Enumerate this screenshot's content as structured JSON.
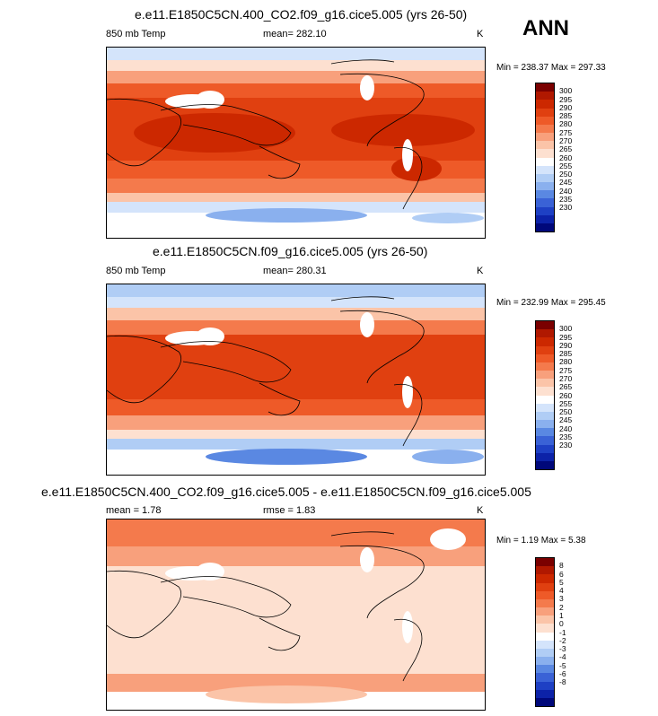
{
  "season": "ANN",
  "colors": {
    "temp": [
      "#7a0000",
      "#b01800",
      "#cc2800",
      "#e04010",
      "#ee5a28",
      "#f47a4c",
      "#f8a07c",
      "#fbc4a8",
      "#fde0d0",
      "#ffffff",
      "#d4e4fb",
      "#b0cdf5",
      "#8ab0ee",
      "#5a88e2",
      "#3a62d6",
      "#1e40c4",
      "#0c22a8",
      "#00087a"
    ],
    "diff": [
      "#7a0000",
      "#b01800",
      "#cc2800",
      "#e04010",
      "#ee5a28",
      "#f47a4c",
      "#f8a07c",
      "#fbc4a8",
      "#fde0d0",
      "#ffffff",
      "#d4e4fb",
      "#b0cdf5",
      "#8ab0ee",
      "#5a88e2",
      "#3a62d6",
      "#1e40c4",
      "#0c22a8",
      "#00087a"
    ]
  },
  "panels": [
    {
      "title": "e.e11.E1850C5CN.400_CO2.f09_g16.cice5.005 (yrs 26-50)",
      "variable": "850 mb Temp",
      "mean_label": "mean= 282.10",
      "units": "K",
      "range_label": "Min = 238.37 Max = 297.33",
      "scale": "temp",
      "levels": [
        "300",
        "295",
        "290",
        "285",
        "280",
        "275",
        "270",
        "265",
        "260",
        "255",
        "250",
        "245",
        "240",
        "235",
        "230"
      ],
      "mean_value": 282.1
    },
    {
      "title": "e.e11.E1850C5CN.f09_g16.cice5.005 (yrs 26-50)",
      "variable": "850 mb Temp",
      "mean_label": "mean= 280.31",
      "units": "K",
      "range_label": "Min = 232.99 Max = 295.45",
      "scale": "temp",
      "levels": [
        "300",
        "295",
        "290",
        "285",
        "280",
        "275",
        "270",
        "265",
        "260",
        "255",
        "250",
        "245",
        "240",
        "235",
        "230"
      ],
      "mean_value": 280.31
    },
    {
      "title": "e.e11.E1850C5CN.400_CO2.f09_g16.cice5.005 - e.e11.E1850C5CN.f09_g16.cice5.005",
      "variable": "mean =   1.78",
      "mean_label": "rmse =   1.83",
      "units": "K",
      "range_label": "Min =  1.19 Max =  5.38",
      "scale": "diff",
      "levels": [
        "8",
        "6",
        "5",
        "4",
        "3",
        "2",
        "1",
        "0",
        "-1",
        "-2",
        "-3",
        "-4",
        "-5",
        "-6",
        "-8"
      ],
      "mean_value": 1.78
    }
  ]
}
